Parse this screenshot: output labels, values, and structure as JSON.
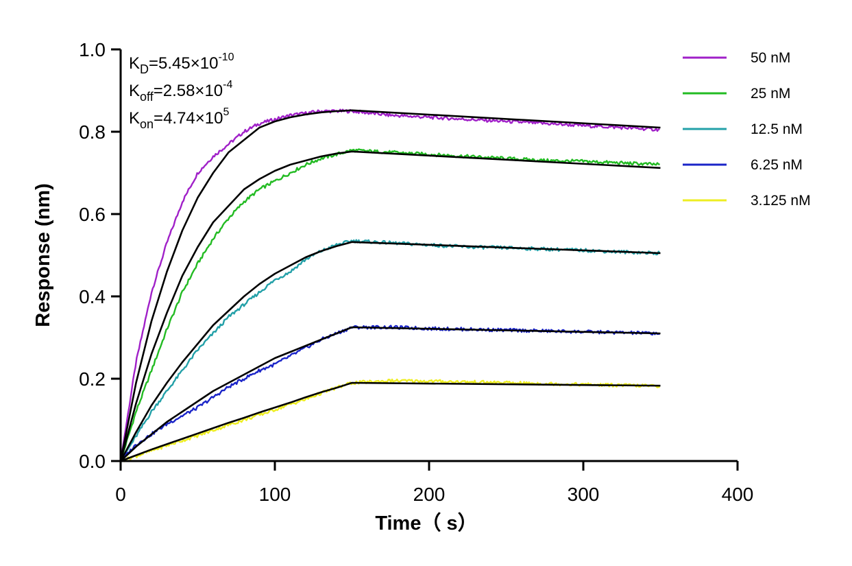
{
  "chart_data": {
    "type": "line",
    "title": "",
    "xlabel": "Time（ s）",
    "ylabel": "Response (nm)",
    "xlim": [
      0,
      400
    ],
    "ylim": [
      0,
      1.0
    ],
    "x_ticks": [
      "0",
      "100",
      "200",
      "300",
      "400"
    ],
    "y_ticks": [
      "0.0",
      "0.2",
      "0.4",
      "0.6",
      "0.8",
      "1.0"
    ],
    "grid": false,
    "legend_position": "top-right",
    "association_end": 150,
    "dissociation_end": 350,
    "kinetics": [
      {
        "sym": "K",
        "sub": "D",
        "val": "=5.45×10",
        "exp": "-10"
      },
      {
        "sym": "K",
        "sub": "off",
        "val": "=2.58×10",
        "exp": "-4"
      },
      {
        "sym": "K",
        "sub": "on",
        "val": "=4.74×10",
        "exp": "5"
      }
    ],
    "fit_color": "#000000",
    "series": [
      {
        "name": "50 nM",
        "color": "#a020c8",
        "x": [
          0,
          10,
          20,
          30,
          40,
          50,
          60,
          70,
          80,
          90,
          100,
          110,
          120,
          130,
          140,
          150,
          175,
          200,
          225,
          250,
          275,
          300,
          325,
          350
        ],
        "values": [
          0,
          0.24,
          0.41,
          0.53,
          0.63,
          0.7,
          0.74,
          0.77,
          0.8,
          0.82,
          0.83,
          0.84,
          0.845,
          0.85,
          0.85,
          0.85,
          0.84,
          0.835,
          0.83,
          0.825,
          0.82,
          0.815,
          0.81,
          0.805
        ],
        "fit_x": [
          0,
          10,
          20,
          30,
          40,
          50,
          60,
          70,
          80,
          90,
          100,
          110,
          120,
          130,
          140,
          150,
          350
        ],
        "fit_values": [
          0,
          0.19,
          0.34,
          0.46,
          0.56,
          0.64,
          0.7,
          0.75,
          0.78,
          0.81,
          0.825,
          0.835,
          0.842,
          0.847,
          0.85,
          0.852,
          0.81
        ]
      },
      {
        "name": "25 nM",
        "color": "#22bb22",
        "x": [
          0,
          10,
          20,
          30,
          40,
          50,
          60,
          70,
          80,
          90,
          100,
          110,
          120,
          130,
          140,
          150,
          175,
          200,
          225,
          250,
          275,
          300,
          325,
          350
        ],
        "values": [
          0,
          0.12,
          0.22,
          0.32,
          0.41,
          0.48,
          0.54,
          0.59,
          0.63,
          0.66,
          0.68,
          0.7,
          0.72,
          0.735,
          0.745,
          0.755,
          0.75,
          0.745,
          0.74,
          0.735,
          0.73,
          0.728,
          0.724,
          0.72
        ],
        "fit_x": [
          0,
          10,
          20,
          30,
          40,
          50,
          60,
          70,
          80,
          90,
          100,
          110,
          120,
          130,
          140,
          150,
          350
        ],
        "fit_values": [
          0,
          0.14,
          0.26,
          0.36,
          0.45,
          0.52,
          0.58,
          0.62,
          0.66,
          0.685,
          0.705,
          0.72,
          0.73,
          0.74,
          0.747,
          0.752,
          0.712
        ]
      },
      {
        "name": "12.5 nM",
        "color": "#23a0a8",
        "x": [
          0,
          10,
          20,
          30,
          40,
          50,
          60,
          70,
          80,
          90,
          100,
          110,
          120,
          130,
          140,
          150,
          175,
          200,
          225,
          250,
          275,
          300,
          325,
          350
        ],
        "values": [
          0,
          0.06,
          0.12,
          0.17,
          0.22,
          0.27,
          0.31,
          0.35,
          0.38,
          0.41,
          0.44,
          0.46,
          0.49,
          0.51,
          0.525,
          0.535,
          0.53,
          0.525,
          0.52,
          0.518,
          0.515,
          0.512,
          0.508,
          0.505
        ],
        "fit_x": [
          0,
          10,
          20,
          30,
          40,
          50,
          60,
          70,
          80,
          90,
          100,
          110,
          120,
          130,
          140,
          150,
          350
        ],
        "fit_values": [
          0,
          0.07,
          0.135,
          0.19,
          0.24,
          0.285,
          0.33,
          0.365,
          0.4,
          0.43,
          0.455,
          0.475,
          0.495,
          0.51,
          0.522,
          0.532,
          0.505
        ]
      },
      {
        "name": "6.25 nM",
        "color": "#1a24c8",
        "x": [
          0,
          10,
          20,
          30,
          40,
          50,
          60,
          70,
          80,
          90,
          100,
          110,
          120,
          130,
          140,
          150,
          175,
          200,
          225,
          250,
          275,
          300,
          325,
          350
        ],
        "values": [
          0,
          0.04,
          0.065,
          0.09,
          0.11,
          0.13,
          0.155,
          0.18,
          0.2,
          0.22,
          0.235,
          0.255,
          0.275,
          0.295,
          0.31,
          0.325,
          0.325,
          0.322,
          0.32,
          0.318,
          0.316,
          0.314,
          0.312,
          0.31
        ],
        "fit_x": [
          0,
          10,
          20,
          30,
          40,
          50,
          60,
          70,
          80,
          90,
          100,
          110,
          120,
          130,
          140,
          150,
          350
        ],
        "fit_values": [
          0,
          0.035,
          0.065,
          0.095,
          0.12,
          0.145,
          0.17,
          0.19,
          0.21,
          0.23,
          0.25,
          0.265,
          0.28,
          0.295,
          0.31,
          0.325,
          0.31
        ]
      },
      {
        "name": "3.125 nM",
        "color": "#eeee22",
        "x": [
          0,
          10,
          20,
          30,
          40,
          50,
          60,
          70,
          80,
          90,
          100,
          110,
          120,
          130,
          140,
          150,
          175,
          200,
          225,
          250,
          275,
          300,
          325,
          350
        ],
        "values": [
          0,
          0.012,
          0.025,
          0.038,
          0.05,
          0.062,
          0.075,
          0.088,
          0.1,
          0.112,
          0.125,
          0.138,
          0.15,
          0.165,
          0.178,
          0.19,
          0.195,
          0.194,
          0.192,
          0.19,
          0.188,
          0.186,
          0.184,
          0.182
        ],
        "fit_x": [
          0,
          10,
          20,
          30,
          40,
          50,
          60,
          70,
          80,
          90,
          100,
          110,
          120,
          130,
          140,
          150,
          350
        ],
        "fit_values": [
          0,
          0.014,
          0.028,
          0.041,
          0.054,
          0.067,
          0.08,
          0.093,
          0.105,
          0.118,
          0.13,
          0.142,
          0.155,
          0.167,
          0.178,
          0.19,
          0.183
        ]
      }
    ]
  }
}
